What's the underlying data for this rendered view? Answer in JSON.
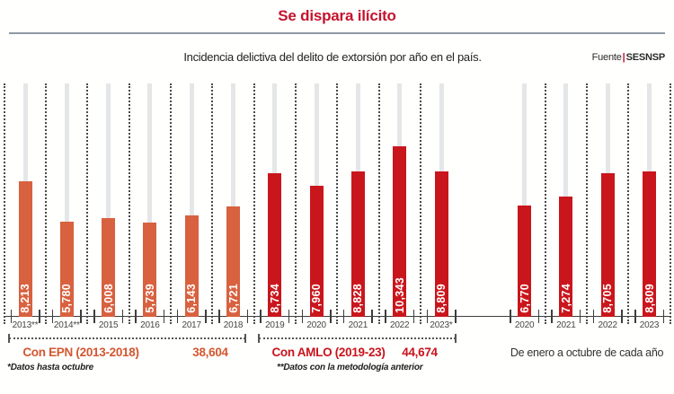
{
  "header": {
    "title": "Se dispara ilícito",
    "subtitle": "Incidencia delictiva del delito de extorsión por año en el país.",
    "source_label": "Fuente",
    "source_separator": "|",
    "source_name": "SESNSP"
  },
  "colors": {
    "title_red": "#c5122d",
    "epn_orange": "#d8613f",
    "amlo_red": "#c9161c",
    "track_gray": "#e4e6e7",
    "axis_dark": "#3d3d3d",
    "divider_gray_blue": "#8e9aa4"
  },
  "chart_data": {
    "type": "bar",
    "title": "Se dispara ilícito",
    "subtitle": "Incidencia delictiva del delito de extorsión por año en el país.",
    "source": "Fuente|SESNSP",
    "ylim": [
      0,
      14100
    ],
    "y_axis_shown": false,
    "value_labels": "inside bars, rotated 90°, white",
    "groups": [
      {
        "label": "Con EPN (2013-2018)",
        "total": "38,604",
        "color_key": "epn_orange",
        "bars": [
          {
            "year": "2013**",
            "value": 8213,
            "display": "8,213"
          },
          {
            "year": "2014**",
            "value": 5780,
            "display": "5,780"
          },
          {
            "year": "2015",
            "value": 6008,
            "display": "6,008"
          },
          {
            "year": "2016",
            "value": 5739,
            "display": "5,739"
          },
          {
            "year": "2017",
            "value": 6143,
            "display": "6,143"
          },
          {
            "year": "2018",
            "value": 6721,
            "display": "6,721"
          }
        ]
      },
      {
        "label": "Con AMLO (2019-23)",
        "total": "44,674",
        "color_key": "amlo_red",
        "bars": [
          {
            "year": "2019",
            "value": 8734,
            "display": "8,734"
          },
          {
            "year": "2020",
            "value": 7960,
            "display": "7,960"
          },
          {
            "year": "2021",
            "value": 8828,
            "display": "8,828"
          },
          {
            "year": "2022",
            "value": 10343,
            "display": "10,343"
          },
          {
            "year": "2023*",
            "value": 8809,
            "display": "8,809"
          }
        ]
      },
      {
        "label": "De enero a octubre de cada año",
        "total": "",
        "color_key": "amlo_red",
        "bars": [
          {
            "year": "2020",
            "value": 6770,
            "display": "6,770"
          },
          {
            "year": "2021",
            "value": 7274,
            "display": "7,274"
          },
          {
            "year": "2022",
            "value": 8705,
            "display": "8,705"
          },
          {
            "year": "2023",
            "value": 8809,
            "display": "8,809"
          }
        ]
      }
    ]
  },
  "footnotes": [
    "*Datos hasta octubre",
    "**Datos con la metodología anterior"
  ]
}
